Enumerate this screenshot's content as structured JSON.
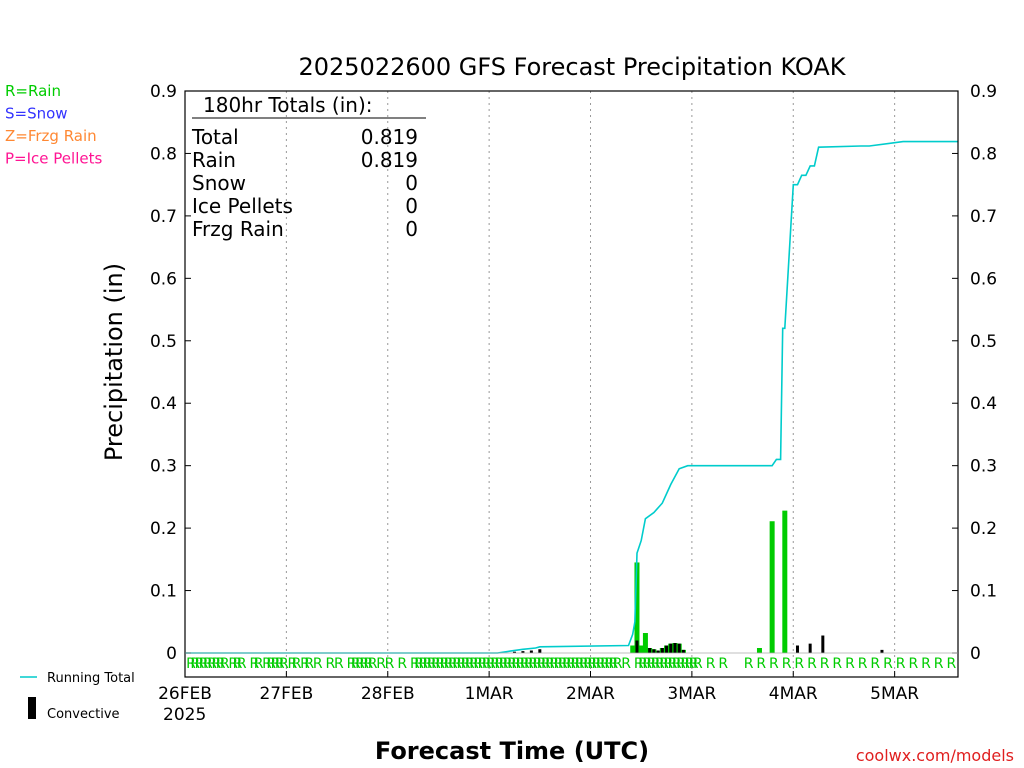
{
  "chart_data": {
    "type": "bar",
    "title": "2025022600 GFS Forecast Precipitation KOAK",
    "xlabel": "Forecast Time (UTC)",
    "ylabel": "Precipitation (in)",
    "ylim": [
      0,
      0.9
    ],
    "xlim_hours": [
      0,
      183
    ],
    "y_ticks": [
      "0",
      "0.1",
      "0.2",
      "0.3",
      "0.4",
      "0.5",
      "0.6",
      "0.7",
      "0.8",
      "0.9"
    ],
    "x_ticks": [
      {
        "label": "26FEB",
        "hour": 0
      },
      {
        "label": "27FEB",
        "hour": 24
      },
      {
        "label": "28FEB",
        "hour": 48
      },
      {
        "label": "1MAR",
        "hour": 72
      },
      {
        "label": "2MAR",
        "hour": 96
      },
      {
        "label": "3MAR",
        "hour": 120
      },
      {
        "label": "4MAR",
        "hour": 144
      },
      {
        "label": "5MAR",
        "hour": 168
      }
    ],
    "x_sublabel": "2025",
    "grid": true,
    "ptype_legend": [
      {
        "text": "R=Rain",
        "color": "#00cc00"
      },
      {
        "text": "S=Snow",
        "color": "#3333ff"
      },
      {
        "text": "Z=Frzg Rain",
        "color": "#ff8833"
      },
      {
        "text": "P=Ice Pellets",
        "color": "#ff1493"
      }
    ],
    "totals_box": {
      "header": "180hr Totals (in):",
      "rows": [
        {
          "label": "Total",
          "value": "0.819"
        },
        {
          "label": "Rain",
          "value": "0.819"
        },
        {
          "label": "Snow",
          "value": "0"
        },
        {
          "label": "Ice Pellets",
          "value": "0"
        },
        {
          "label": "Frzg Rain",
          "value": "0"
        }
      ]
    },
    "legend": [
      {
        "label": "Running Total",
        "symbol": "line",
        "color": "#00cccc"
      },
      {
        "label": "Convective",
        "symbol": "bar",
        "color": "#000000"
      }
    ],
    "series": [
      {
        "name": "Running Total",
        "kind": "line",
        "color": "#00cccc",
        "x": [
          0,
          74,
          77,
          80,
          83,
          84,
          105,
          106,
          106.5,
          107,
          108,
          109,
          111,
          113,
          115,
          117,
          119,
          120,
          121,
          139,
          140,
          141,
          141.5,
          142,
          144,
          145,
          146,
          147,
          148,
          149,
          150,
          160,
          162,
          170,
          183
        ],
        "y": [
          0,
          0,
          0.003,
          0.006,
          0.008,
          0.01,
          0.012,
          0.03,
          0.05,
          0.16,
          0.18,
          0.215,
          0.225,
          0.24,
          0.27,
          0.295,
          0.3,
          0.3,
          0.3,
          0.3,
          0.31,
          0.31,
          0.52,
          0.52,
          0.75,
          0.75,
          0.765,
          0.765,
          0.78,
          0.78,
          0.81,
          0.812,
          0.812,
          0.819,
          0.819
        ]
      },
      {
        "name": "Rain",
        "kind": "bar",
        "color": "#00cc00",
        "x": [
          106,
          107,
          108,
          109,
          110,
          111,
          112,
          113,
          114,
          115,
          116,
          117,
          118,
          136,
          139,
          142
        ],
        "y": [
          0.012,
          0.145,
          0.012,
          0.032,
          0.008,
          0.006,
          0.003,
          0.008,
          0.012,
          0.015,
          0.016,
          0.015,
          0.005,
          0.008,
          0.211,
          0.228
        ]
      },
      {
        "name": "Convective",
        "kind": "bar",
        "color": "#000000",
        "x": [
          78,
          80,
          82,
          84,
          107,
          110,
          111,
          112,
          113,
          114,
          115,
          116,
          117,
          118,
          145,
          148,
          151,
          165
        ],
        "y": [
          0.002,
          0.003,
          0.004,
          0.006,
          0.02,
          0.008,
          0.006,
          0.004,
          0.008,
          0.012,
          0.015,
          0.016,
          0.015,
          0.005,
          0.012,
          0.015,
          0.028,
          0.005
        ]
      }
    ],
    "ptype_strip": {
      "row_text": "R",
      "color": "#00cc00",
      "hours": [
        0,
        1,
        2,
        3,
        4,
        5,
        6,
        7,
        8,
        10,
        11,
        12,
        15,
        16,
        18,
        19,
        20,
        21,
        22,
        24,
        25,
        27,
        28,
        30,
        33,
        35,
        38,
        39,
        40,
        41,
        42,
        43,
        45,
        47,
        50,
        53,
        54,
        55,
        56,
        57,
        58,
        59,
        60,
        61,
        62,
        63,
        64,
        65,
        66,
        67,
        68,
        69,
        70,
        71,
        72,
        73,
        74,
        75,
        76,
        77,
        78,
        79,
        80,
        81,
        82,
        83,
        84,
        85,
        86,
        87,
        88,
        89,
        90,
        91,
        92,
        93,
        94,
        95,
        96,
        97,
        98,
        99,
        100,
        101,
        103,
        106,
        107,
        108,
        109,
        110,
        111,
        112,
        113,
        114,
        115,
        116,
        117,
        118,
        119,
        120,
        123,
        126,
        132,
        135,
        138,
        141,
        144,
        147,
        150,
        153,
        156,
        159,
        162,
        165,
        168,
        171,
        174,
        177,
        180
      ]
    },
    "footer_credit": "coolwx.com/models"
  }
}
